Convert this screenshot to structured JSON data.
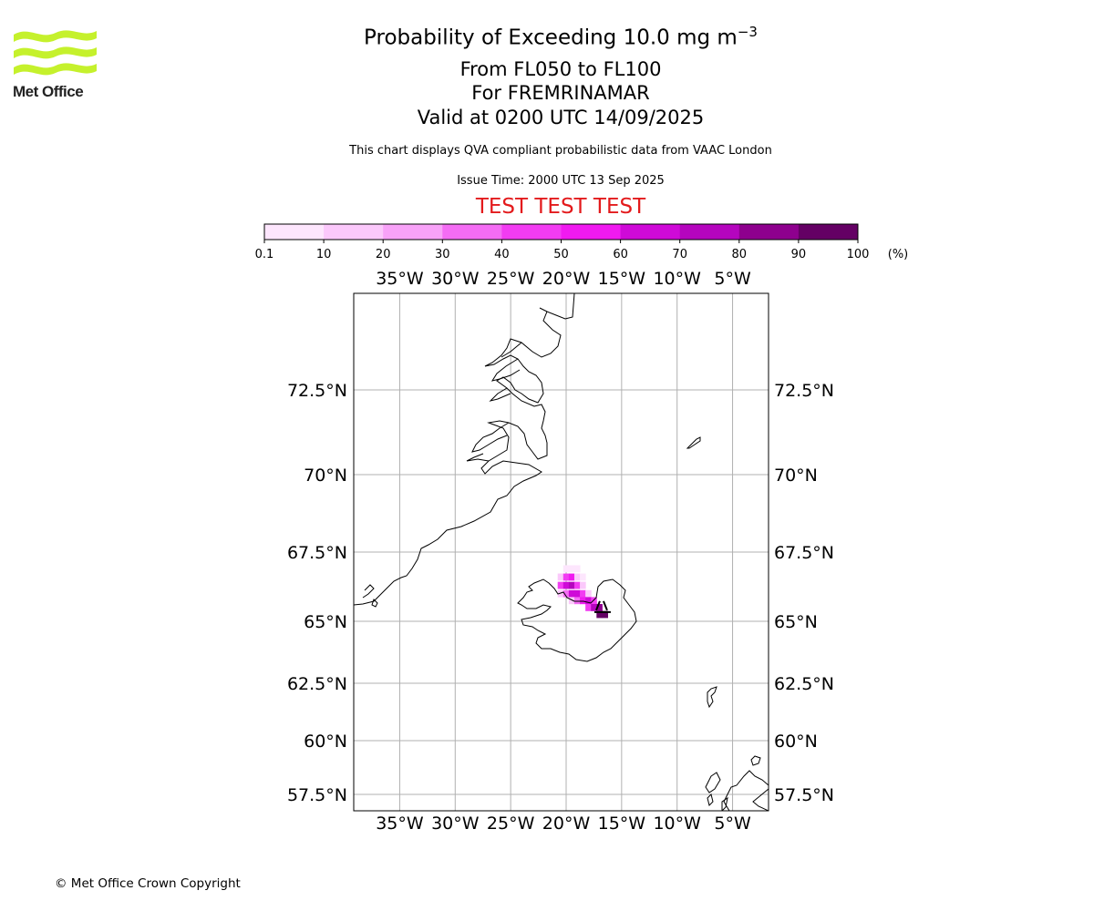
{
  "logo": {
    "text": "Met Office",
    "color": "#c5f12c"
  },
  "title": {
    "main": "Probability of Exceeding 10.0 mg m",
    "main_sup": "−3"
  },
  "subtitles": [
    "From FL050 to FL100",
    "For FREMRINAMAR",
    "Valid at 0200 UTC 14/09/2025"
  ],
  "info_line": "This chart displays QVA compliant probabilistic data from VAAC London",
  "issue_time": "Issue Time: 2000 UTC 13 Sep 2025",
  "test_banner": "TEST TEST TEST",
  "colorbar": {
    "ticks": [
      "0.1",
      "10",
      "20",
      "30",
      "40",
      "50",
      "60",
      "70",
      "80",
      "90",
      "100"
    ],
    "unit": "(%)",
    "colors": [
      "#fde6fd",
      "#fbc8fb",
      "#f8a2f8",
      "#f46cf4",
      "#f23cf2",
      "#f01af0",
      "#cf0ad8",
      "#b505be",
      "#8e008e",
      "#640064"
    ]
  },
  "map": {
    "lon_labels": [
      "35°W",
      "30°W",
      "25°W",
      "20°W",
      "15°W",
      "10°W",
      "5°W"
    ],
    "lat_labels": [
      "72.5°N",
      "70°N",
      "67.5°N",
      "65°N",
      "62.5°N",
      "60°N",
      "57.5°N"
    ],
    "plume": [
      {
        "lon": -20.0,
        "lat": 66.9,
        "prob": 5
      },
      {
        "lon": -19.5,
        "lat": 66.9,
        "prob": 5
      },
      {
        "lon": -19.0,
        "lat": 66.9,
        "prob": 3
      },
      {
        "lon": -20.5,
        "lat": 66.6,
        "prob": 12
      },
      {
        "lon": -20.0,
        "lat": 66.6,
        "prob": 45
      },
      {
        "lon": -19.5,
        "lat": 66.6,
        "prob": 55
      },
      {
        "lon": -19.0,
        "lat": 66.6,
        "prob": 15
      },
      {
        "lon": -18.5,
        "lat": 66.6,
        "prob": 4
      },
      {
        "lon": -20.5,
        "lat": 66.3,
        "prob": 48
      },
      {
        "lon": -20.0,
        "lat": 66.3,
        "prob": 62
      },
      {
        "lon": -19.5,
        "lat": 66.3,
        "prob": 75
      },
      {
        "lon": -19.0,
        "lat": 66.3,
        "prob": 45
      },
      {
        "lon": -18.5,
        "lat": 66.3,
        "prob": 12
      },
      {
        "lon": -20.5,
        "lat": 66.0,
        "prob": 10
      },
      {
        "lon": -20.0,
        "lat": 66.0,
        "prob": 30
      },
      {
        "lon": -19.5,
        "lat": 66.0,
        "prob": 65
      },
      {
        "lon": -19.0,
        "lat": 66.0,
        "prob": 62
      },
      {
        "lon": -18.5,
        "lat": 66.0,
        "prob": 45
      },
      {
        "lon": -18.0,
        "lat": 66.0,
        "prob": 15
      },
      {
        "lon": -19.5,
        "lat": 65.75,
        "prob": 15
      },
      {
        "lon": -19.0,
        "lat": 65.75,
        "prob": 30
      },
      {
        "lon": -18.5,
        "lat": 65.75,
        "prob": 55
      },
      {
        "lon": -18.0,
        "lat": 65.75,
        "prob": 65
      },
      {
        "lon": -17.5,
        "lat": 65.75,
        "prob": 45
      },
      {
        "lon": -18.0,
        "lat": 65.5,
        "prob": 45
      },
      {
        "lon": -17.5,
        "lat": 65.5,
        "prob": 75
      },
      {
        "lon": -17.0,
        "lat": 65.5,
        "prob": 85
      },
      {
        "lon": -17.0,
        "lat": 65.25,
        "prob": 95
      },
      {
        "lon": -16.5,
        "lat": 65.25,
        "prob": 92
      }
    ],
    "source_marker": {
      "lon": -16.8,
      "lat": 65.4
    }
  },
  "copyright": "© Met Office Crown Copyright"
}
